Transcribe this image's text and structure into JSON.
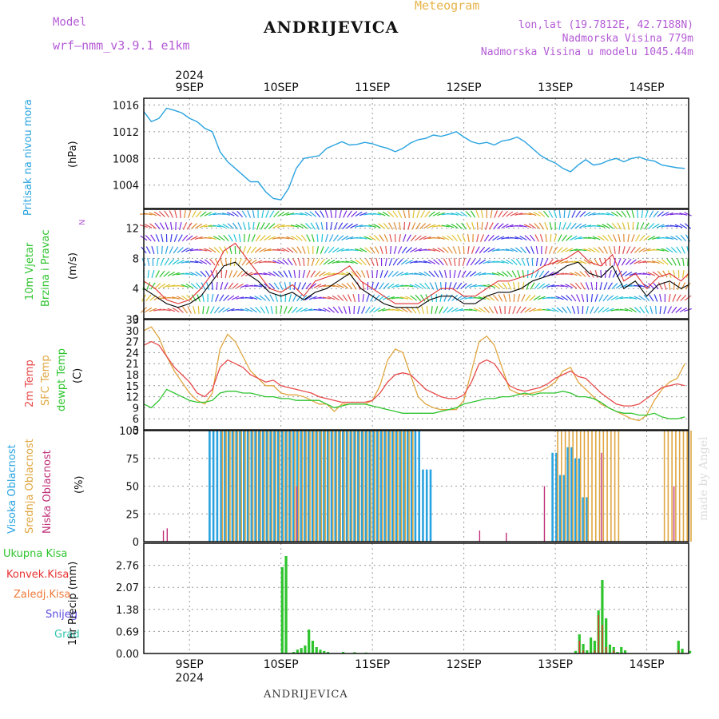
{
  "header": {
    "title": "ANDRIJEVICA",
    "subtitle": "Meteogram",
    "model_label": "Model",
    "model_name": "wrf—nmm_v3.9.1  e1km",
    "coords": "lon,lat (19.7812E, 42.7188N)",
    "elevation": "Nadmorska Visina 779m",
    "model_elevation": "Nadmorska Visina u modelu 1045.44m"
  },
  "footer": {
    "station": "ANDRIJEVICA",
    "credit": "made by Angel"
  },
  "colors": {
    "pressure": "#29a3e0",
    "wind_speed": "#000000",
    "gust": "#e03030",
    "temp2m": "#e84a4a",
    "sfc_temp": "#e0a640",
    "dewpoint": "#2ec42e",
    "high_cloud": "#29a3e0",
    "mid_cloud": "#e0a640",
    "low_cloud": "#c0307a",
    "precip_total": "#2ec42e",
    "precip_conv": "#e83030"
  },
  "chart_data": [
    {
      "type": "line",
      "panel": "pressure",
      "ylabel": [
        "Pritisak na nivou mora",
        "(hPa)"
      ],
      "ylim": [
        1000.5,
        1017
      ],
      "yticks": [
        1004,
        1008,
        1012,
        1016
      ],
      "x": [
        0,
        2,
        4,
        6,
        8,
        10,
        12,
        14,
        16,
        18,
        20,
        22,
        24,
        26,
        28,
        30,
        32,
        34,
        36,
        38,
        40,
        42,
        44,
        46,
        48,
        50,
        52,
        54,
        56,
        58,
        60,
        62,
        64,
        66,
        68,
        70,
        72,
        74,
        76,
        78,
        80,
        82,
        84,
        86,
        88,
        90,
        92,
        94,
        96,
        98,
        100,
        102,
        104,
        106,
        108,
        110,
        112,
        114,
        116,
        118,
        120,
        122,
        124,
        126,
        128,
        130,
        132,
        134,
        136,
        138,
        140,
        142
      ],
      "values": [
        1015,
        1013.5,
        1014,
        1015.5,
        1015.2,
        1014.8,
        1014,
        1013.5,
        1012.5,
        1012,
        1009,
        1007.5,
        1006.5,
        1005.5,
        1004.5,
        1004.5,
        1003,
        1002,
        1001.8,
        1003.5,
        1006.5,
        1008,
        1008.2,
        1008.4,
        1009.5,
        1010,
        1010.5,
        1010,
        1010.1,
        1010.4,
        1010.2,
        1009.8,
        1009.5,
        1009,
        1009.5,
        1010.3,
        1010.8,
        1011,
        1011.5,
        1011.3,
        1011.6,
        1012,
        1011.2,
        1010.5,
        1010.2,
        1010.4,
        1010,
        1010.6,
        1010.8,
        1011.2,
        1010.5,
        1009.5,
        1008.5,
        1007.8,
        1007.3,
        1006.5,
        1006,
        1007,
        1007.8,
        1007,
        1007.2,
        1007.7,
        1008,
        1007.5,
        1008,
        1008.2,
        1007.8,
        1007.6,
        1007,
        1006.8,
        1006.6,
        1006.5
      ]
    },
    {
      "type": "line",
      "panel": "wind",
      "ylabel": [
        "10m Vjetar",
        "Brzina i Pravac",
        "(m/s)"
      ],
      "compass": "N",
      "ylim": [
        0,
        14.5
      ],
      "yticks": [
        0,
        4,
        8,
        12
      ],
      "x": [
        0,
        3,
        6,
        9,
        12,
        15,
        18,
        21,
        24,
        27,
        30,
        33,
        36,
        39,
        42,
        45,
        48,
        51,
        54,
        57,
        60,
        63,
        66,
        69,
        72,
        75,
        78,
        81,
        84,
        87,
        90,
        93,
        96,
        99,
        102,
        105,
        108,
        111,
        114,
        117,
        120,
        123,
        126,
        129,
        132,
        135,
        138,
        141,
        143
      ],
      "series": [
        {
          "values": [
            4,
            3,
            2,
            1.5,
            2,
            3,
            5,
            7,
            7.5,
            6,
            5,
            3.5,
            3,
            3.5,
            2.5,
            3.5,
            4,
            5,
            6,
            4,
            3,
            2,
            1.5,
            1.5,
            1.5,
            2.5,
            3,
            3,
            2,
            2,
            3,
            3.5,
            3.5,
            4,
            5,
            5.5,
            6,
            7,
            7.5,
            6,
            5.5,
            7,
            4,
            5,
            3,
            4.5,
            5,
            4,
            4.5
          ]
        },
        {
          "values": [
            5,
            4,
            2.5,
            2,
            2.5,
            4,
            6,
            9,
            10,
            8,
            6,
            4,
            3.5,
            4.5,
            3,
            5,
            5.5,
            6,
            7,
            5,
            4,
            3,
            2,
            2,
            2,
            3,
            4,
            4,
            3,
            3,
            4,
            5,
            5,
            5.5,
            6,
            7,
            7.5,
            8,
            9,
            7.5,
            7,
            8.5,
            5,
            6,
            4,
            5.5,
            6,
            5,
            6
          ]
        }
      ]
    },
    {
      "type": "line",
      "panel": "temperature",
      "ylabel": [
        "2m Temp",
        "SFC Temp",
        "dewpt Temp",
        "(C)"
      ],
      "ylim": [
        3,
        33
      ],
      "yticks": [
        3,
        6,
        9,
        12,
        15,
        18,
        21,
        24,
        27,
        30,
        33
      ],
      "x": [
        0,
        2,
        4,
        6,
        8,
        10,
        12,
        14,
        16,
        18,
        20,
        22,
        24,
        26,
        28,
        30,
        32,
        34,
        36,
        38,
        40,
        42,
        44,
        46,
        48,
        50,
        52,
        54,
        56,
        58,
        60,
        62,
        64,
        66,
        68,
        70,
        72,
        74,
        76,
        78,
        80,
        82,
        84,
        86,
        88,
        90,
        92,
        94,
        96,
        98,
        100,
        102,
        104,
        106,
        108,
        110,
        112,
        114,
        116,
        118,
        120,
        122,
        124,
        126,
        128,
        130,
        132,
        134,
        136,
        138,
        140,
        142
      ],
      "series": [
        {
          "name": "2m Temp",
          "values": [
            26,
            27,
            26,
            23,
            20,
            18,
            16,
            13,
            12,
            14,
            20,
            22,
            21,
            20,
            18,
            17,
            16,
            16.5,
            15,
            14.5,
            14,
            13.5,
            13,
            12,
            11.5,
            11,
            10.5,
            10.5,
            10.5,
            10.5,
            11,
            13,
            16,
            18,
            18.5,
            18,
            16,
            14,
            13,
            12,
            11.5,
            11.5,
            12.5,
            16,
            21,
            22,
            21,
            18,
            15,
            14,
            13.5,
            14,
            14.5,
            15.5,
            17,
            18,
            19,
            17.5,
            17,
            15,
            13,
            11.5,
            10,
            9.5,
            9.5,
            10,
            11.5,
            13,
            14.5,
            15,
            15.5,
            15
          ]
        },
        {
          "name": "SFC Temp",
          "values": [
            30,
            31,
            28,
            23,
            19,
            16,
            13,
            11,
            10,
            13,
            25,
            29,
            27,
            23,
            19,
            17,
            15,
            15,
            13,
            12.5,
            12.5,
            12,
            11,
            10,
            10,
            8,
            10,
            10,
            10,
            10,
            11,
            15,
            22,
            25,
            24,
            18,
            12,
            10,
            9,
            8.5,
            8.5,
            8.5,
            11,
            19,
            27,
            28.5,
            26,
            20,
            14,
            13,
            12.5,
            13,
            13.5,
            14.5,
            16,
            19,
            20,
            16,
            14,
            12,
            10,
            9,
            8,
            7,
            6,
            5.5,
            7,
            11,
            14,
            16,
            17,
            21
          ]
        },
        {
          "name": "dewpt Temp",
          "values": [
            10,
            9,
            11,
            14,
            13,
            12,
            11,
            10.5,
            10.5,
            11,
            13,
            13.5,
            13.5,
            13,
            13,
            12.5,
            12,
            12,
            11.5,
            11.5,
            11,
            11,
            11,
            11,
            10,
            9,
            9.5,
            10,
            10,
            10,
            9.5,
            9,
            8.5,
            8,
            7.5,
            7.5,
            7.5,
            7.5,
            7.5,
            8,
            8.5,
            9,
            10,
            10.5,
            11,
            11.5,
            11.5,
            12,
            12,
            12.5,
            13,
            12.5,
            13,
            13,
            13,
            13.5,
            13,
            12,
            12,
            11.5,
            10.5,
            9,
            8,
            7.5,
            7.5,
            7,
            7,
            7.5,
            6.5,
            6,
            6,
            6.5
          ]
        }
      ]
    },
    {
      "type": "bar",
      "panel": "cloud",
      "ylabel": [
        "Visoka Oblacnost",
        "Srednja Oblacnost",
        "Niska Oblacnost",
        "(%)"
      ],
      "ylim": [
        0,
        100
      ],
      "yticks": [
        0,
        25,
        50,
        75,
        100
      ],
      "series": [
        {
          "name": "Visoka Oblacnost",
          "ranges": [
            [
              17,
              72,
              100
            ],
            [
              73,
              75,
              65
            ],
            [
              107,
              108,
              80
            ],
            [
              109,
              110,
              60
            ],
            [
              111,
              112,
              85
            ],
            [
              113,
              114,
              75
            ],
            [
              115,
              116,
              40
            ]
          ]
        },
        {
          "name": "Srednja Oblacnost",
          "ranges": [
            [
              20,
              70,
              100
            ],
            [
              108,
              124,
              100
            ],
            [
              136,
              143,
              100
            ]
          ]
        },
        {
          "name": "Niska Oblacnost",
          "spikes": [
            [
              5,
              10
            ],
            [
              6,
              12
            ],
            [
              40,
              50
            ],
            [
              88,
              10
            ],
            [
              95,
              8
            ],
            [
              105,
              50
            ],
            [
              120,
              80
            ],
            [
              139,
              50
            ]
          ]
        }
      ]
    },
    {
      "type": "bar",
      "panel": "precip",
      "ylabel": [
        "Ukupna Kisa",
        "Konvek.Kisa",
        "Zaledj.Kisa",
        "Snijeg",
        "Grad",
        "1hr Precip (mm)"
      ],
      "ylim": [
        0,
        3.45
      ],
      "yticks": [
        0,
        0.69,
        1.38,
        2.07,
        2.76
      ],
      "x": [
        36,
        37,
        38,
        39,
        40,
        41,
        42,
        43,
        44,
        45,
        46,
        47,
        48,
        52,
        55,
        58,
        113,
        114,
        115,
        116,
        117,
        118,
        119,
        120,
        121,
        122,
        123,
        124,
        125,
        126,
        140,
        141,
        143
      ],
      "values": [
        2.7,
        3.05,
        0.02,
        0.05,
        0.12,
        0.17,
        0.25,
        0.75,
        0.4,
        0.2,
        0.12,
        0.08,
        0.05,
        0.05,
        0.04,
        0.03,
        0.08,
        0.6,
        0.3,
        0.1,
        0.5,
        0.4,
        1.35,
        2.3,
        1.1,
        0.28,
        0.2,
        0.05,
        0.2,
        0.1,
        0.4,
        0.15,
        0.08
      ],
      "conv": [
        0,
        0,
        0,
        0,
        0,
        0,
        0,
        0,
        0,
        0,
        0,
        0,
        0,
        0,
        0,
        0,
        0,
        0.4,
        0.1,
        0,
        0,
        0.1,
        1.2,
        0.9,
        0.2,
        0,
        0.1,
        0,
        0,
        0,
        0.1,
        0,
        0
      ]
    }
  ],
  "time_axis": {
    "start_hour_label": 0,
    "hours": 143,
    "tick_days": [
      {
        "hour": 12,
        "label": "9SEP",
        "year": "2024"
      },
      {
        "hour": 36,
        "label": "10SEP"
      },
      {
        "hour": 60,
        "label": "11SEP"
      },
      {
        "hour": 84,
        "label": "12SEP"
      },
      {
        "hour": 108,
        "label": "13SEP"
      },
      {
        "hour": 132,
        "label": "14SEP"
      }
    ]
  }
}
